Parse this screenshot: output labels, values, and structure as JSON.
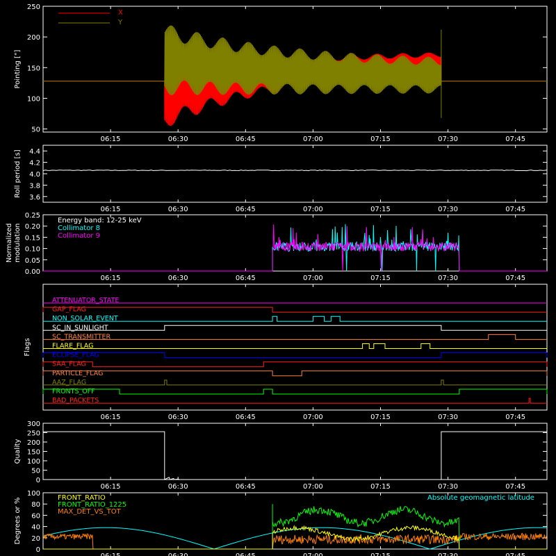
{
  "x_ticks": [
    "06:15",
    "06:30",
    "06:45",
    "07:00",
    "07:15",
    "07:30",
    "07:45"
  ],
  "x_tick_minutes": [
    15,
    30,
    45,
    60,
    75,
    90,
    105
  ],
  "chart_data": [
    {
      "type": "line",
      "ylabel": "Pointing [\"]",
      "ylim": [
        45,
        250
      ],
      "yticks": [
        50,
        100,
        150,
        200,
        250
      ],
      "legend": [
        {
          "name": "X",
          "color": "#ff0000"
        },
        {
          "name": "Y",
          "color": "#808000"
        }
      ],
      "series": [
        {
          "name": "X",
          "color": "#ff0000",
          "baseline": 128,
          "start_min": 27,
          "end_min": 88.5,
          "low_start": 50,
          "low_end": 152,
          "high_start": 165,
          "high_end": 175
        },
        {
          "name": "Y",
          "color": "#808000",
          "baseline": 128,
          "start_min": 27,
          "end_min": 88.5,
          "high_start": 222,
          "high_end": 160,
          "low_start": 105,
          "low_end": 108
        }
      ]
    },
    {
      "type": "line",
      "ylabel": "Roll period [s]",
      "ylim": [
        3.5,
        4.5
      ],
      "yticks": [
        "3.6",
        "3.8",
        "4.0",
        "4.2",
        "4.4"
      ],
      "yticks_v": [
        3.6,
        3.8,
        4.0,
        4.2,
        4.4
      ],
      "series": [
        {
          "name": "",
          "color": "#ffffff",
          "value": 4.06
        }
      ]
    },
    {
      "type": "line",
      "ylabel": "Normalized modulation",
      "ylim": [
        0,
        0.25
      ],
      "yticks": [
        "0.00",
        "0.05",
        "0.10",
        "0.15",
        "0.20",
        "0.25"
      ],
      "yticks_v": [
        0,
        0.05,
        0.1,
        0.15,
        0.2,
        0.25
      ],
      "legend": [
        {
          "name": "Energy band: 12-25 keV",
          "color": "#ffffff"
        },
        {
          "name": "Collimator 8",
          "color": "#00ffff"
        },
        {
          "name": "Collimator 9",
          "color": "#ff00ff"
        }
      ],
      "active_start_min": 51,
      "active_end_min": 92.5,
      "typical": 0.1
    },
    {
      "type": "line",
      "ylabel": "Flags",
      "flags": [
        {
          "name": "ATTENUATOR_STATE",
          "color": "#ff00ff",
          "segments": []
        },
        {
          "name": "GAP_FLAG",
          "color": "#ff2020",
          "segments": [
            [
              0,
              51
            ]
          ]
        },
        {
          "name": "NON_SOLAR_EVENT",
          "color": "#00ffff",
          "segments": [
            [
              51,
              52
            ],
            [
              60,
              62.5
            ],
            [
              64,
              66
            ]
          ]
        },
        {
          "name": "SC_IN_SUNLIGHT",
          "color": "#ffffff",
          "segments": [
            [
              27,
              88.5
            ]
          ]
        },
        {
          "name": "SC_TRANSMITTER",
          "color": "#ff8040",
          "segments": [
            [
              99,
              105
            ]
          ]
        },
        {
          "name": "FLARE_FLAG",
          "color": "#ffff00",
          "segments": [
            [
              71,
              72.5
            ],
            [
              73.5,
              76
            ],
            [
              84,
              86
            ]
          ]
        },
        {
          "name": "ECLIPSE_FLAG",
          "color": "#0000ff",
          "segments": [
            [
              0,
              27
            ],
            [
              88.5,
              112
            ]
          ]
        },
        {
          "name": "SAA_FLAG",
          "color": "#ff2020",
          "segments": [
            [
              0,
              11
            ],
            [
              49,
              112
            ]
          ]
        },
        {
          "name": "PARTICLE_FLAG",
          "color": "#ff8040",
          "segments": [
            [
              0,
              51
            ],
            [
              57.5,
              112
            ]
          ]
        },
        {
          "name": "AAZ_FLAG",
          "color": "#808000",
          "segments": [
            [
              27,
              27.5
            ],
            [
              88.5,
              89
            ]
          ]
        },
        {
          "name": "FRONTS_OFF",
          "color": "#00ff00",
          "segments": [
            [
              0,
              17
            ],
            [
              49,
              51
            ],
            [
              92.5,
              112
            ]
          ]
        },
        {
          "name": "BAD_PACKETS",
          "color": "#ff2020",
          "segments": [
            [
              108,
              108.3
            ]
          ]
        }
      ]
    },
    {
      "type": "line",
      "ylabel": "Quality",
      "ylim": [
        0,
        300
      ],
      "yticks": [
        0,
        50,
        100,
        150,
        200,
        250,
        300
      ],
      "series": [
        {
          "name": "",
          "color": "#ffffff",
          "high": 255,
          "low_start_min": 27,
          "low_end_min": 88.5
        }
      ]
    },
    {
      "type": "line",
      "ylabel": "Degrees or %",
      "ylim": [
        0,
        100
      ],
      "yticks": [
        0,
        20,
        40,
        60,
        80,
        100
      ],
      "legend_left": [
        {
          "name": "FRONT_RATIO",
          "color": "#ffff00"
        },
        {
          "name": "FRONT_RATIO_1225",
          "color": "#00ff00"
        },
        {
          "name": "MAX_DET_VS_TOT",
          "color": "#ff8000"
        }
      ],
      "legend_right": {
        "name": "Absolute geomagnetic latitude",
        "color": "#00ffff"
      }
    }
  ]
}
